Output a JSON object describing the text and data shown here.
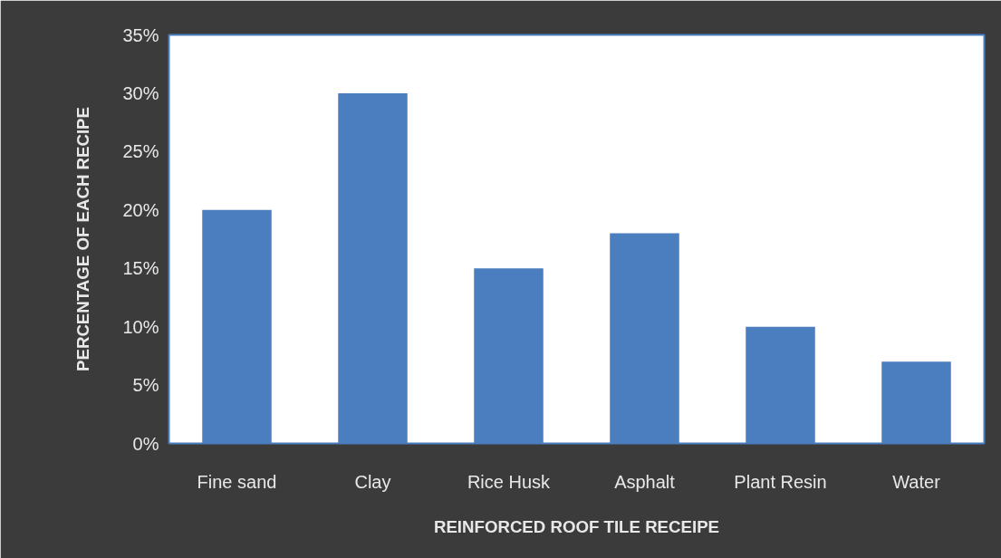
{
  "chart_data": {
    "type": "bar",
    "xlabel": "REINFORCED ROOF TILE RECEIPE",
    "ylabel": "PERCENTAGE OF EACH RECIPE",
    "categories": [
      "Fine sand",
      "Clay",
      "Rice Husk",
      "Asphalt",
      "Plant Resin",
      "Water"
    ],
    "values": [
      20,
      30,
      15,
      18,
      10,
      7
    ],
    "color": "#4a7ebf",
    "ylim": [
      0,
      35
    ],
    "yticks": [
      {
        "value": 0,
        "label": "0%"
      },
      {
        "value": 5,
        "label": "5%"
      },
      {
        "value": 10,
        "label": "10%"
      },
      {
        "value": 15,
        "label": "15%"
      },
      {
        "value": 20,
        "label": "20%"
      },
      {
        "value": 25,
        "label": "25%"
      },
      {
        "value": 30,
        "label": "30%"
      },
      {
        "value": 35,
        "label": "35%"
      }
    ],
    "grid": false
  }
}
